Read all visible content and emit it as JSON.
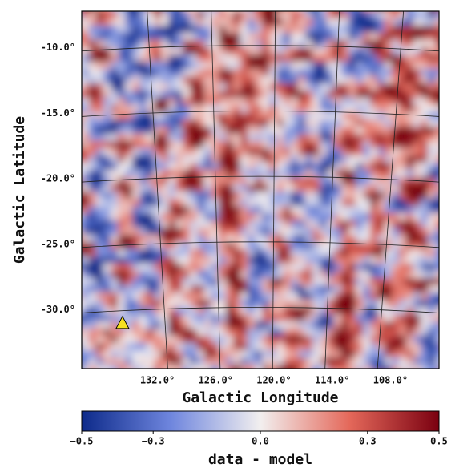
{
  "chart_data": {
    "type": "residual-map",
    "xlabel": "Galactic Longitude",
    "ylabel": "Galactic Latitude",
    "xlim": [
      139.8,
      103.0
    ],
    "ylim": [
      -34.5,
      -7.2
    ],
    "xticks": [
      {
        "value": 132,
        "label": "132.0°"
      },
      {
        "value": 126,
        "label": "126.0°"
      },
      {
        "value": 120,
        "label": "120.0°"
      },
      {
        "value": 114,
        "label": "114.0°"
      },
      {
        "value": 108,
        "label": "108.0°"
      }
    ],
    "yticks": [
      {
        "value": -10,
        "label": "-10.0°"
      },
      {
        "value": -15,
        "label": "-15.0°"
      },
      {
        "value": -20,
        "label": "-20.0°"
      },
      {
        "value": -25,
        "label": "-25.0°"
      },
      {
        "value": -30,
        "label": "-30.0°"
      }
    ],
    "grid": true,
    "markers": {
      "x": [
        135.6
      ],
      "y": [
        -31.0
      ],
      "color": "#f5e020"
    },
    "colorbar": {
      "label": "data - model",
      "lim": [
        -0.5,
        0.5
      ],
      "ticks": [
        {
          "value": -0.5,
          "label": "−0.5"
        },
        {
          "value": -0.3,
          "label": "−0.3"
        },
        {
          "value": 0,
          "label": "0.0"
        },
        0.3,
        0.5
      ],
      "colormap": [
        "#0d2a8a",
        "#6f86de",
        "#f2efef",
        "#e4685a",
        "#7a0010"
      ]
    }
  }
}
